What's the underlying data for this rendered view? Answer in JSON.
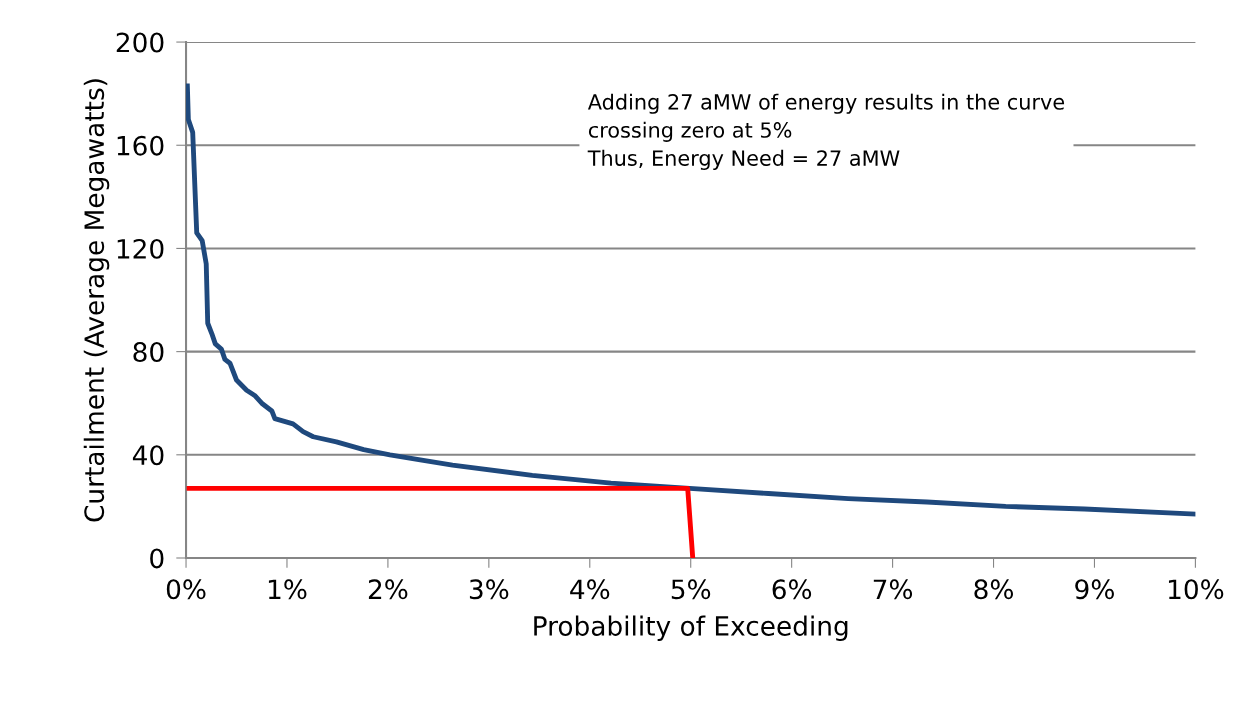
{
  "chart_data": {
    "type": "line",
    "xlabel": "Probability of Exceeding",
    "ylabel": "Curtailment (Average Megawatts)",
    "annotations": [
      "Adding 27 aMW of energy results in the curve\ncrossing zero at 5%\nThus, Energy Need = 27 aMW"
    ],
    "series": [
      {
        "color": "#1f497d",
        "x": [
          0.013,
          0.023,
          0.066,
          0.106,
          0.16,
          0.2,
          0.215,
          0.255,
          0.29,
          0.35,
          0.385,
          0.435,
          0.5,
          0.6,
          0.68,
          0.75,
          0.85,
          0.88,
          1.06,
          1.16,
          1.26,
          1.49,
          1.76,
          2.02,
          2.32,
          2.64,
          3.43,
          4.21,
          4.99,
          5.77,
          6.56,
          7.34,
          8.12,
          8.9,
          10
        ],
        "values": [
          183,
          170,
          165,
          126,
          123,
          114,
          91,
          87,
          83,
          81,
          77,
          75.5,
          69,
          65,
          63,
          60,
          57,
          54,
          52,
          49,
          47,
          45,
          42,
          40,
          38,
          36,
          32,
          29,
          27,
          25,
          23,
          21.7,
          20,
          19,
          17
        ]
      },
      {
        "color": "#ff0000",
        "x": [
          0.03,
          4.97,
          5.02
        ],
        "values": [
          27,
          27,
          0
        ]
      }
    ],
    "xlim": [
      0,
      10
    ],
    "ylim": [
      0,
      200
    ],
    "xticks": [
      {
        "value": 0,
        "label": "0%"
      },
      {
        "value": 1,
        "label": "1%"
      },
      {
        "value": 2,
        "label": "2%"
      },
      {
        "value": 3,
        "label": "3%"
      },
      {
        "value": 4,
        "label": "4%"
      },
      {
        "value": 5,
        "label": "5%"
      },
      {
        "value": 6,
        "label": "6%"
      },
      {
        "value": 7,
        "label": "7%"
      },
      {
        "value": 8,
        "label": "8%"
      },
      {
        "value": 9,
        "label": "9%"
      },
      {
        "value": 10,
        "label": "10%"
      }
    ],
    "yticks": [
      0,
      40,
      80,
      120,
      160,
      200
    ],
    "grid": "y",
    "marker": "none",
    "line_style": "solid"
  }
}
